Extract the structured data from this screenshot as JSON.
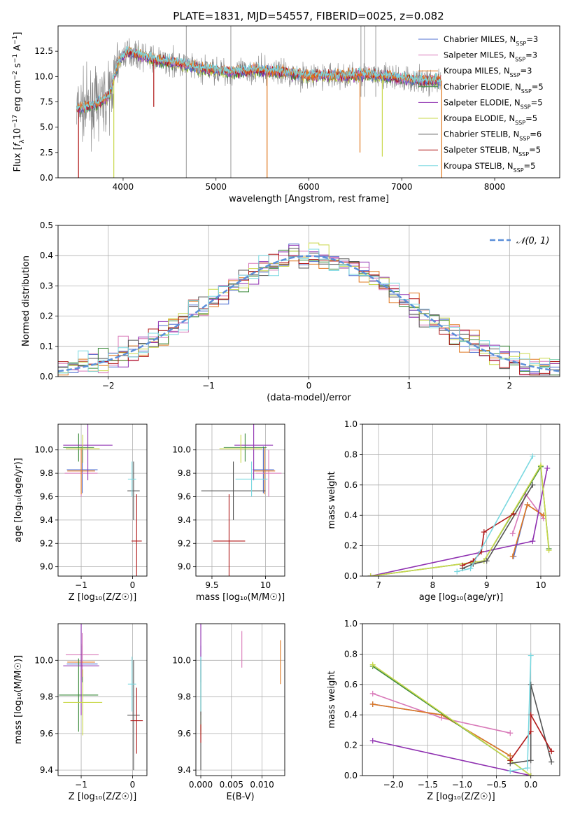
{
  "page_title": "PLATE=1831, MJD=54557, FIBERID=0025, z=0.082",
  "colors": {
    "Chabrier MILES": "#4f6fd0",
    "Salpeter MILES": "#d878b8",
    "Kroupa MILES": "#e07820",
    "Chabrier ELODIE": "#3b8a3b",
    "Salpeter ELODIE": "#8e2fb0",
    "Kroupa ELODIE": "#c9d84a",
    "Chabrier STELIB": "#555555",
    "Salpeter STELIB": "#b01818",
    "Kroupa STELIB": "#7ad8e0",
    "gaussian": "#5b8fd9"
  },
  "legend_spectrum": [
    {
      "name": "Chabrier MILES",
      "label": "Chabrier MILES, N",
      "sub": "SSP",
      "suffix": "=3"
    },
    {
      "name": "Salpeter MILES",
      "label": "Salpeter MILES, N",
      "sub": "SSP",
      "suffix": "=3"
    },
    {
      "name": "Kroupa MILES",
      "label": "Kroupa MILES, N",
      "sub": "SSP",
      "suffix": "=3"
    },
    {
      "name": "Chabrier ELODIE",
      "label": "Chabrier ELODIE, N",
      "sub": "SSP",
      "suffix": "=5"
    },
    {
      "name": "Salpeter ELODIE",
      "label": "Salpeter ELODIE, N",
      "sub": "SSP",
      "suffix": "=5"
    },
    {
      "name": "Kroupa ELODIE",
      "label": "Kroupa ELODIE, N",
      "sub": "SSP",
      "suffix": "=5"
    },
    {
      "name": "Chabrier STELIB",
      "label": "Chabrier STELIB, N",
      "sub": "SSP",
      "suffix": "=6"
    },
    {
      "name": "Salpeter STELIB",
      "label": "Salpeter STELIB, N",
      "sub": "SSP",
      "suffix": "=5"
    },
    {
      "name": "Kroupa STELIB",
      "label": "Kroupa STELIB, N",
      "sub": "SSP",
      "suffix": "=5"
    }
  ],
  "legend_hist": {
    "label": "𝒩(0, 1)"
  },
  "chart_data": [
    {
      "id": "spectrum",
      "type": "line",
      "xlabel": "wavelength [Angstrom, rest frame]",
      "ylabel": "Flux [f_λ 10^-17 erg cm^-2 s^-1 A^-1]",
      "xlim": [
        3300,
        8700
      ],
      "ylim": [
        0,
        15
      ],
      "xticks": [
        4000,
        5000,
        6000,
        7000,
        8000
      ],
      "yticks": [
        0.0,
        2.5,
        5.0,
        7.5,
        10.0,
        12.5
      ],
      "observed_color": "#808080",
      "observed_continuum": [
        [
          3500,
          6.8
        ],
        [
          3700,
          7.2
        ],
        [
          3850,
          8.0
        ],
        [
          3950,
          11.5
        ],
        [
          4050,
          12.5
        ],
        [
          4200,
          12.0
        ],
        [
          4400,
          11.5
        ],
        [
          4600,
          11.3
        ],
        [
          4800,
          10.8
        ],
        [
          5000,
          10.6
        ],
        [
          5200,
          10.4
        ],
        [
          5400,
          10.6
        ],
        [
          5600,
          10.5
        ],
        [
          5800,
          10.3
        ],
        [
          6000,
          10.0
        ],
        [
          6200,
          10.1
        ],
        [
          6400,
          10.0
        ],
        [
          6600,
          10.2
        ],
        [
          6800,
          10.0
        ],
        [
          7000,
          9.8
        ],
        [
          7200,
          9.6
        ],
        [
          7420,
          9.5
        ]
      ],
      "observed_spikes": [
        [
          4680,
          0
        ],
        [
          4680,
          15
        ],
        [
          5160,
          0
        ],
        [
          5160,
          15
        ],
        [
          6560,
          15
        ],
        [
          6720,
          15
        ]
      ],
      "model_drops": [
        {
          "series": "Kroupa MILES",
          "x": 5550,
          "y": 0
        },
        {
          "series": "Kroupa ELODIE",
          "x": 3900,
          "y": 0
        },
        {
          "series": "Kroupa ELODIE",
          "x": 6790,
          "y": 2.1
        },
        {
          "series": "Kroupa MILES",
          "x": 6550,
          "y": 2.5
        },
        {
          "series": "Salpeter STELIB",
          "x": 4330,
          "y": 7.0
        },
        {
          "series": "Salpeter STELIB",
          "x": 3520,
          "y": 0
        }
      ]
    },
    {
      "id": "residual_hist",
      "type": "bar",
      "xlabel": "(data-model)/error",
      "ylabel": "Normed distribution",
      "xlim": [
        -2.5,
        2.5
      ],
      "ylim": [
        0,
        0.5
      ],
      "xticks": [
        -2,
        -1,
        0,
        1,
        2
      ],
      "yticks": [
        0.0,
        0.1,
        0.2,
        0.3,
        0.4,
        0.5
      ],
      "bin_width": 0.1,
      "gaussian": {
        "mu": 0,
        "sigma": 1
      }
    },
    {
      "id": "age_vs_Z",
      "type": "scatter",
      "xlabel": "Z [log₁₀(Z/Z☉)]",
      "ylabel": "age  [log₁₀(age/yr)]",
      "xlim": [
        -1.45,
        0.28
      ],
      "ylim": [
        8.92,
        10.22
      ],
      "xticks": [
        -1,
        0
      ],
      "yticks": [
        9.0,
        9.2,
        9.4,
        9.6,
        9.8,
        10.0
      ],
      "points": [
        {
          "series": "Chabrier MILES",
          "x": -0.98,
          "y": 9.83,
          "xerr": 0.3,
          "yerr": 0.2
        },
        {
          "series": "Salpeter MILES",
          "x": -1.0,
          "y": 9.8,
          "xerr": 0.32,
          "yerr": 0.2
        },
        {
          "series": "Kroupa MILES",
          "x": -1.0,
          "y": 9.82,
          "xerr": 0.27,
          "yerr": 0.2
        },
        {
          "series": "Chabrier ELODIE",
          "x": -1.05,
          "y": 10.02,
          "xerr": 0.3,
          "yerr": 0.12
        },
        {
          "series": "Salpeter ELODIE",
          "x": -0.87,
          "y": 10.04,
          "xerr": 0.48,
          "yerr": 0.3
        },
        {
          "series": "Kroupa ELODIE",
          "x": -0.97,
          "y": 10.01,
          "xerr": 0.33,
          "yerr": 0.12
        },
        {
          "series": "Chabrier STELIB",
          "x": 0.02,
          "y": 9.65,
          "xerr": 0.12,
          "yerr": 0.25
        },
        {
          "series": "Salpeter STELIB",
          "x": 0.08,
          "y": 9.22,
          "xerr": 0.1,
          "yerr": 0.4
        },
        {
          "series": "Kroupa STELIB",
          "x": -0.01,
          "y": 9.75,
          "xerr": 0.08,
          "yerr": 0.15
        }
      ]
    },
    {
      "id": "age_vs_mass",
      "type": "scatter",
      "xlabel": "mass [log₁₀(M/M☉)]",
      "ylabel": "",
      "xlim": [
        9.35,
        10.18
      ],
      "ylim": [
        8.92,
        10.22
      ],
      "xticks": [
        9.5,
        10.0
      ],
      "yticks": [
        9.0,
        9.2,
        9.4,
        9.6,
        9.8,
        10.0
      ],
      "points": [
        {
          "series": "Chabrier MILES",
          "x": 9.98,
          "y": 9.83,
          "xerr": 0.1,
          "yerr": 0.2
        },
        {
          "series": "Salpeter MILES",
          "x": 10.03,
          "y": 9.8,
          "xerr": 0.12,
          "yerr": 0.2
        },
        {
          "series": "Kroupa MILES",
          "x": 9.99,
          "y": 9.82,
          "xerr": 0.1,
          "yerr": 0.2
        },
        {
          "series": "Chabrier ELODIE",
          "x": 9.81,
          "y": 10.02,
          "xerr": 0.2,
          "yerr": 0.12
        },
        {
          "series": "Salpeter ELODIE",
          "x": 9.89,
          "y": 10.04,
          "xerr": 0.18,
          "yerr": 0.3
        },
        {
          "series": "Kroupa ELODIE",
          "x": 9.77,
          "y": 10.01,
          "xerr": 0.2,
          "yerr": 0.12
        },
        {
          "series": "Chabrier STELIB",
          "x": 9.7,
          "y": 9.65,
          "xerr": 0.3,
          "yerr": 0.25
        },
        {
          "series": "Salpeter STELIB",
          "x": 9.66,
          "y": 9.22,
          "xerr": 0.15,
          "yerr": 0.4
        },
        {
          "series": "Kroupa STELIB",
          "x": 9.87,
          "y": 9.75,
          "xerr": 0.15,
          "yerr": 0.15
        }
      ]
    },
    {
      "id": "weight_vs_age",
      "type": "line",
      "xlabel": "age  [log₁₀(age/yr)]",
      "ylabel": "mass weight",
      "xlim": [
        6.7,
        10.35
      ],
      "ylim": [
        0,
        1
      ],
      "xticks": [
        7,
        8,
        9,
        10
      ],
      "yticks": [
        0.0,
        0.2,
        0.4,
        0.6,
        0.8,
        1.0
      ],
      "series": [
        {
          "name": "Chabrier MILES",
          "x": [
            9.5,
            9.75,
            10.05
          ],
          "y": [
            0.13,
            0.47,
            0.4
          ]
        },
        {
          "name": "Salpeter MILES",
          "x": [
            9.48,
            9.72,
            10.05
          ],
          "y": [
            0.28,
            0.54,
            0.38
          ]
        },
        {
          "name": "Kroupa MILES",
          "x": [
            9.48,
            9.75,
            10.05
          ],
          "y": [
            0.13,
            0.47,
            0.4
          ]
        },
        {
          "name": "Chabrier ELODIE",
          "x": [
            6.85,
            8.95,
            10.0,
            10.15
          ],
          "y": [
            0.0,
            0.1,
            0.72,
            0.18
          ]
        },
        {
          "name": "Salpeter ELODIE",
          "x": [
            6.85,
            9.85,
            10.12
          ],
          "y": [
            0.0,
            0.23,
            0.71
          ]
        },
        {
          "name": "Kroupa ELODIE",
          "x": [
            6.85,
            8.95,
            10.0,
            10.15
          ],
          "y": [
            0.0,
            0.1,
            0.73,
            0.17
          ]
        },
        {
          "name": "Chabrier STELIB",
          "x": [
            8.55,
            8.75,
            9.0,
            9.85
          ],
          "y": [
            0.05,
            0.08,
            0.1,
            0.6
          ]
        },
        {
          "name": "Salpeter STELIB",
          "x": [
            8.55,
            8.75,
            8.9,
            8.95,
            9.5
          ],
          "y": [
            0.07,
            0.1,
            0.16,
            0.29,
            0.41
          ]
        },
        {
          "name": "Kroupa STELIB",
          "x": [
            8.45,
            8.7,
            9.85
          ],
          "y": [
            0.03,
            0.05,
            0.79
          ]
        }
      ]
    },
    {
      "id": "mass_vs_Z",
      "type": "scatter",
      "xlabel": "Z [log₁₀(Z/Z☉)]",
      "ylabel": "mass [log₁₀(M/M☉)]",
      "xlim": [
        -1.45,
        0.28
      ],
      "ylim": [
        9.37,
        10.2
      ],
      "xticks": [
        -1,
        0
      ],
      "yticks": [
        9.4,
        9.6,
        9.8,
        10.0
      ],
      "points": [
        {
          "series": "Chabrier MILES",
          "x": -0.98,
          "y": 9.98,
          "xerr": 0.3,
          "yerr": 0.1
        },
        {
          "series": "Salpeter MILES",
          "x": -0.98,
          "y": 10.03,
          "xerr": 0.32,
          "yerr": 0.12
        },
        {
          "series": "Kroupa MILES",
          "x": -1.0,
          "y": 9.99,
          "xerr": 0.27,
          "yerr": 0.1
        },
        {
          "series": "Chabrier ELODIE",
          "x": -1.05,
          "y": 9.81,
          "xerr": 0.38,
          "yerr": 0.2
        },
        {
          "series": "Salpeter ELODIE",
          "x": -1.0,
          "y": 9.97,
          "xerr": 0.35,
          "yerr": 0.27
        },
        {
          "series": "Kroupa ELODIE",
          "x": -0.97,
          "y": 9.77,
          "xerr": 0.38,
          "yerr": 0.18
        },
        {
          "series": "Chabrier STELIB",
          "x": 0.02,
          "y": 9.7,
          "xerr": 0.12,
          "yerr": 0.3
        },
        {
          "series": "Salpeter STELIB",
          "x": 0.08,
          "y": 9.67,
          "xerr": 0.12,
          "yerr": 0.18
        },
        {
          "series": "Kroupa STELIB",
          "x": -0.01,
          "y": 9.87,
          "xerr": 0.08,
          "yerr": 0.15
        }
      ]
    },
    {
      "id": "mass_vs_EBV",
      "type": "scatter",
      "xlabel": "E(B-V)",
      "ylabel": "",
      "xlim": [
        -0.0008,
        0.0137
      ],
      "ylim": [
        9.37,
        10.2
      ],
      "xticks": [
        0.0,
        0.005,
        0.01
      ],
      "xticklabels": [
        "0.000",
        "0.005",
        "0.010"
      ],
      "yticks": [
        9.4,
        9.6,
        9.8,
        10.0
      ],
      "points": [
        {
          "series": "Chabrier MILES",
          "x": 0.0,
          "y": 9.98,
          "xerr": 0,
          "yerr": 0.1
        },
        {
          "series": "Salpeter MILES",
          "x": 0.0067,
          "y": 10.06,
          "xerr": 0,
          "yerr": 0.1
        },
        {
          "series": "Kroupa MILES",
          "x": 0.013,
          "y": 9.99,
          "xerr": 0,
          "yerr": 0.12
        },
        {
          "series": "Chabrier ELODIE",
          "x": 0.0,
          "y": 9.81,
          "xerr": 0,
          "yerr": 0.2
        },
        {
          "series": "Salpeter ELODIE",
          "x": 0.0,
          "y": 9.97,
          "xerr": 0,
          "yerr": 0.27
        },
        {
          "series": "Kroupa ELODIE",
          "x": 0.0,
          "y": 9.77,
          "xerr": 0,
          "yerr": 0.18
        },
        {
          "series": "Chabrier STELIB",
          "x": 0.0,
          "y": 9.7,
          "xerr": 0,
          "yerr": 0.3
        },
        {
          "series": "Salpeter STELIB",
          "x": 0.0,
          "y": 9.6,
          "xerr": 0,
          "yerr": 0.05
        },
        {
          "series": "Kroupa STELIB",
          "x": 0.0,
          "y": 9.87,
          "xerr": 0,
          "yerr": 0.15
        }
      ]
    },
    {
      "id": "weight_vs_Z",
      "type": "line",
      "xlabel": "Z [log₁₀(Z/Z☉)]",
      "ylabel": "mass weight",
      "xlim": [
        -2.45,
        0.42
      ],
      "ylim": [
        0,
        1
      ],
      "xticks": [
        -2.0,
        -1.5,
        -1.0,
        -0.5,
        0.0
      ],
      "yticks": [
        0.0,
        0.2,
        0.4,
        0.6,
        0.8,
        1.0
      ],
      "series": [
        {
          "name": "Chabrier MILES",
          "x": [
            -2.3,
            -1.3,
            -0.3
          ],
          "y": [
            0.47,
            0.4,
            0.13
          ]
        },
        {
          "name": "Salpeter MILES",
          "x": [
            -2.3,
            -1.3,
            -0.3
          ],
          "y": [
            0.54,
            0.38,
            0.28
          ]
        },
        {
          "name": "Kroupa MILES",
          "x": [
            -2.3,
            -1.3,
            -0.3
          ],
          "y": [
            0.47,
            0.4,
            0.13
          ]
        },
        {
          "name": "Chabrier ELODIE",
          "x": [
            -2.3,
            -0.3,
            0.0
          ],
          "y": [
            0.72,
            0.1,
            0.0
          ]
        },
        {
          "name": "Salpeter ELODIE",
          "x": [
            -2.3,
            0.0
          ],
          "y": [
            0.23,
            0.0
          ]
        },
        {
          "name": "Kroupa ELODIE",
          "x": [
            -2.3,
            -0.3,
            0.0
          ],
          "y": [
            0.73,
            0.1,
            0.0
          ]
        },
        {
          "name": "Chabrier STELIB",
          "x": [
            -0.3,
            0.0,
            0.0,
            0.3
          ],
          "y": [
            0.08,
            0.1,
            0.6,
            0.09
          ]
        },
        {
          "name": "Salpeter STELIB",
          "x": [
            -0.3,
            0.0,
            0.0,
            0.3
          ],
          "y": [
            0.1,
            0.29,
            0.4,
            0.16
          ]
        },
        {
          "name": "Kroupa STELIB",
          "x": [
            -0.3,
            -0.05,
            0.0
          ],
          "y": [
            0.03,
            0.05,
            0.79
          ]
        }
      ]
    }
  ]
}
